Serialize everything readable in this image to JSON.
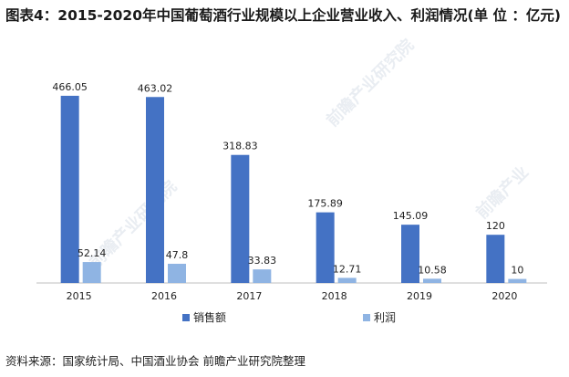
{
  "title": "图表4：2015-2020年中国葡萄酒行业规模以上企业营业收入、利润情况(单 位 ：亿元)",
  "source": "资料来源：国家统计局、中国酒业协会 前瞻产业研究院整理",
  "watermarks": [
    "前瞻产业研究院",
    "前瞻产业",
    "前瞻产业研究院"
  ],
  "chart_data": {
    "type": "bar",
    "title": "图表4：2015-2020年中国葡萄酒行业规模以上企业营业收入、利润情况(单 位 ：亿元)",
    "categories": [
      "2015",
      "2016",
      "2017",
      "2018",
      "2019",
      "2020"
    ],
    "series": [
      {
        "name": "销售额",
        "color": "#4472c4",
        "values": [
          466.05,
          463.02,
          318.83,
          175.89,
          145.09,
          120
        ],
        "labels": [
          "466.05",
          "463.02",
          "318.83",
          "175.89",
          "145.09",
          "120"
        ]
      },
      {
        "name": "利润",
        "color": "#8fb4e3",
        "values": [
          52.14,
          47.8,
          33.83,
          12.71,
          10.58,
          10
        ],
        "labels": [
          "52.14",
          "47.8",
          "33.83",
          "12.71",
          "10.58",
          "10"
        ]
      }
    ],
    "ylim": [
      0,
      500
    ],
    "legend_position": "bottom",
    "grid": false
  }
}
